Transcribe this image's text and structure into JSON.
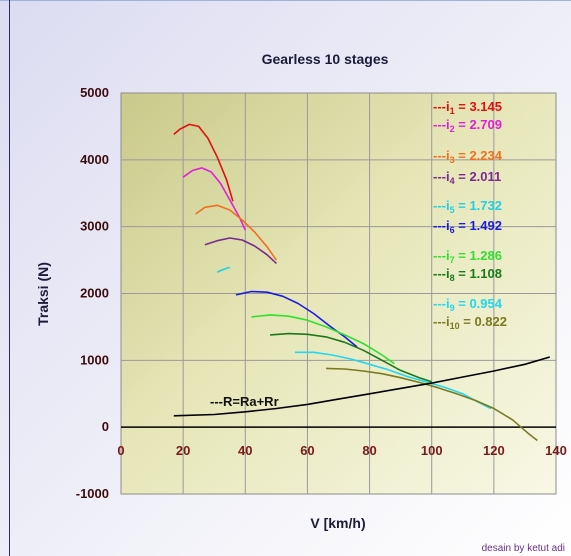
{
  "chart_data": {
    "type": "line",
    "title": "Gearless 10 stages",
    "xlabel": "V [km/h)",
    "ylabel": "Traksi (N)",
    "xlim": [
      0,
      140
    ],
    "ylim": [
      -1000,
      5000
    ],
    "x_ticks": [
      "0",
      "20",
      "40",
      "60",
      "80",
      "100",
      "120",
      "140"
    ],
    "y_ticks": [
      "-1000",
      "0",
      "1000",
      "2000",
      "3000",
      "4000",
      "5000"
    ],
    "grid": true,
    "legend_position": "right",
    "annotation": "---R=Ra+Rr",
    "series": [
      {
        "name": "---i₁ = 3.145",
        "color": "#e01010",
        "points": [
          [
            17,
            4380
          ],
          [
            19,
            4460
          ],
          [
            22,
            4530
          ],
          [
            25,
            4500
          ],
          [
            28,
            4320
          ],
          [
            31,
            4040
          ],
          [
            34,
            3700
          ],
          [
            36,
            3380
          ]
        ]
      },
      {
        "name": "---i₂ = 2.709",
        "color": "#e020d8",
        "points": [
          [
            20,
            3740
          ],
          [
            23,
            3840
          ],
          [
            26,
            3880
          ],
          [
            29,
            3820
          ],
          [
            32,
            3650
          ],
          [
            35,
            3400
          ],
          [
            38,
            3150
          ],
          [
            40,
            2950
          ]
        ]
      },
      {
        "name": "---i₃ = 2.234",
        "color": "#f07020",
        "points": [
          [
            24,
            3190
          ],
          [
            27,
            3290
          ],
          [
            31,
            3320
          ],
          [
            35,
            3250
          ],
          [
            39,
            3100
          ],
          [
            43,
            2920
          ],
          [
            47,
            2700
          ],
          [
            50,
            2500
          ]
        ]
      },
      {
        "name": "---i₄ = 2.011",
        "color": "#7a2a8e",
        "points": [
          [
            27,
            2730
          ],
          [
            31,
            2790
          ],
          [
            35,
            2830
          ],
          [
            39,
            2800
          ],
          [
            43,
            2710
          ],
          [
            47,
            2580
          ],
          [
            50,
            2450
          ]
        ]
      },
      {
        "name": "---i₅ = 1.732",
        "color": "#20d0e0",
        "points": [
          [
            31,
            2320
          ],
          [
            33,
            2360
          ],
          [
            35,
            2390
          ]
        ]
      },
      {
        "name": "---i₆ = 1.492",
        "color": "#1c1ce0",
        "points": [
          [
            37,
            1980
          ],
          [
            42,
            2030
          ],
          [
            47,
            2020
          ],
          [
            52,
            1960
          ],
          [
            57,
            1850
          ],
          [
            62,
            1700
          ],
          [
            67,
            1520
          ],
          [
            72,
            1350
          ],
          [
            76,
            1200
          ]
        ]
      },
      {
        "name": "---i₇ = 1.286",
        "color": "#30e030",
        "points": [
          [
            42,
            1650
          ],
          [
            48,
            1680
          ],
          [
            54,
            1660
          ],
          [
            60,
            1600
          ],
          [
            66,
            1500
          ],
          [
            72,
            1380
          ],
          [
            78,
            1250
          ],
          [
            84,
            1080
          ],
          [
            88,
            950
          ]
        ]
      },
      {
        "name": "---i₈ = 1.108",
        "color": "#1a7a1a",
        "points": [
          [
            48,
            1380
          ],
          [
            54,
            1400
          ],
          [
            60,
            1390
          ],
          [
            66,
            1350
          ],
          [
            72,
            1270
          ],
          [
            78,
            1150
          ],
          [
            84,
            1000
          ],
          [
            90,
            850
          ],
          [
            96,
            740
          ],
          [
            100,
            680
          ]
        ]
      },
      {
        "name": "---i₉ = 0.954",
        "color": "#20d8f0",
        "points": [
          [
            56,
            1120
          ],
          [
            62,
            1120
          ],
          [
            68,
            1080
          ],
          [
            74,
            1020
          ],
          [
            80,
            940
          ],
          [
            86,
            860
          ],
          [
            92,
            760
          ],
          [
            98,
            680
          ],
          [
            104,
            600
          ],
          [
            110,
            500
          ],
          [
            116,
            350
          ],
          [
            119,
            280
          ]
        ]
      },
      {
        "name": "---i₁₀ = 0.822",
        "color": "#7a7a20",
        "points": [
          [
            66,
            880
          ],
          [
            72,
            870
          ],
          [
            78,
            840
          ],
          [
            84,
            800
          ],
          [
            90,
            740
          ],
          [
            96,
            670
          ],
          [
            102,
            590
          ],
          [
            108,
            500
          ],
          [
            114,
            400
          ],
          [
            120,
            280
          ],
          [
            126,
            110
          ],
          [
            131,
            -90
          ],
          [
            134,
            -200
          ]
        ]
      },
      {
        "name": "---R=Ra+Rr",
        "color": "#000000",
        "points": [
          [
            17,
            170
          ],
          [
            30,
            190
          ],
          [
            40,
            230
          ],
          [
            50,
            280
          ],
          [
            60,
            340
          ],
          [
            70,
            420
          ],
          [
            80,
            500
          ],
          [
            90,
            580
          ],
          [
            100,
            660
          ],
          [
            110,
            750
          ],
          [
            120,
            840
          ],
          [
            130,
            940
          ],
          [
            138,
            1050
          ]
        ]
      }
    ]
  },
  "legend": {
    "i1": {
      "prefix": "---i",
      "sub": "1",
      "suffix": " = 3.145"
    },
    "i2": {
      "prefix": "---i",
      "sub": "2",
      "suffix": " = 2.709"
    },
    "i3": {
      "prefix": "---i",
      "sub": "3",
      "suffix": " = 2.234"
    },
    "i4": {
      "prefix": "---i",
      "sub": "4",
      "suffix": " = 2.011"
    },
    "i5": {
      "prefix": "---i",
      "sub": "5",
      "suffix": " = 1.732"
    },
    "i6": {
      "prefix": "---i",
      "sub": "6",
      "suffix": " = 1.492"
    },
    "i7": {
      "prefix": "---i",
      "sub": "7",
      "suffix": " = 1.286"
    },
    "i8": {
      "prefix": "---i",
      "sub": "8",
      "suffix": " = 1.108"
    },
    "i9": {
      "prefix": "---i",
      "sub": "9",
      "suffix": " = 0.954"
    },
    "i10": {
      "prefix": "---i",
      "sub": "10",
      "suffix": " = 0.822"
    }
  },
  "credit": "desain by ketut adi"
}
